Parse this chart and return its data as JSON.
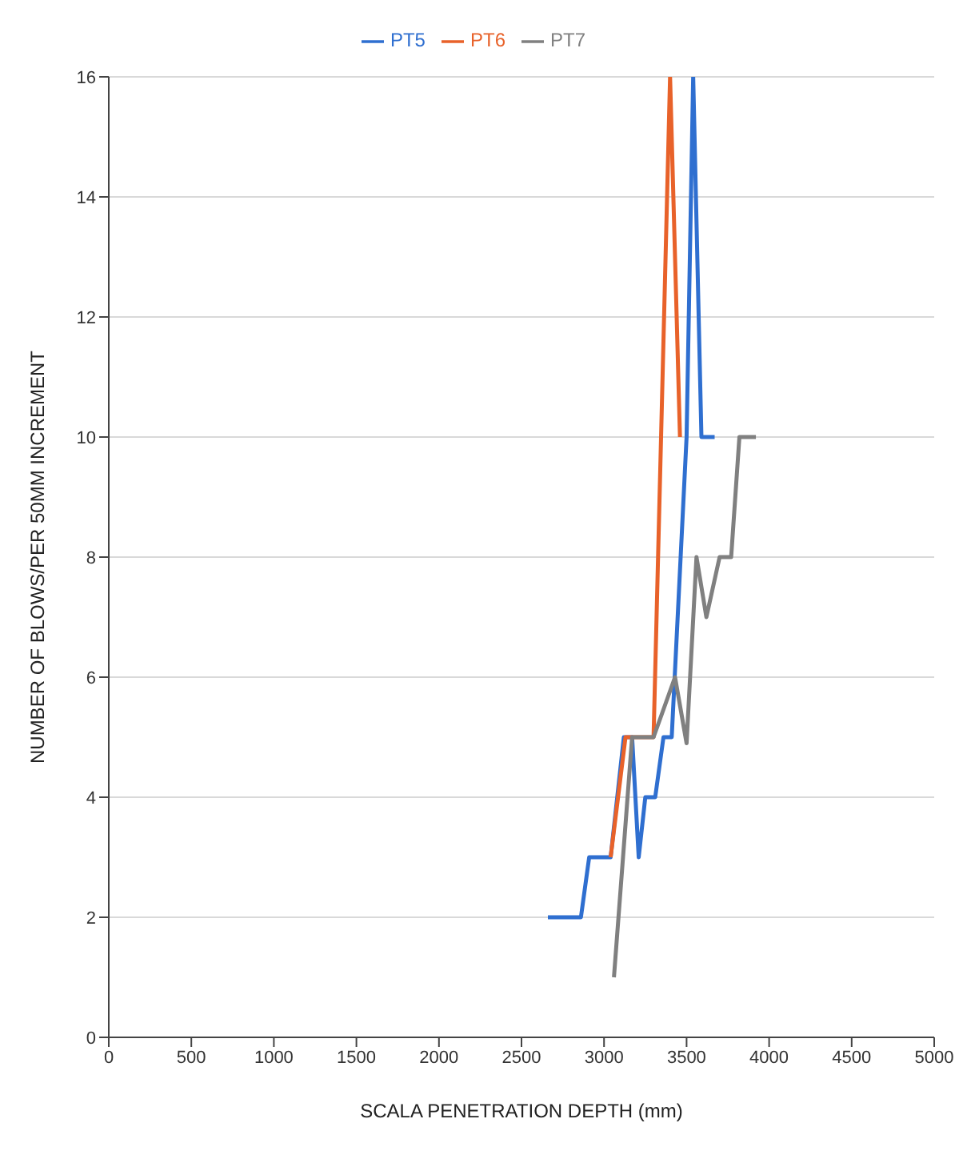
{
  "chart_data": {
    "type": "line",
    "xlabel": "SCALA PENETRATION DEPTH (mm)",
    "ylabel": "NUMBER OF BLOWS/PER 50MM INCREMENT",
    "xlim": [
      0,
      5000
    ],
    "ylim": [
      0,
      16
    ],
    "xticks": [
      0,
      500,
      1000,
      1500,
      2000,
      2500,
      3000,
      3500,
      4000,
      4500,
      5000
    ],
    "yticks": [
      0,
      2,
      4,
      6,
      8,
      10,
      12,
      14,
      16
    ],
    "grid": "y",
    "legend": "top",
    "marker": "none",
    "line_style": "solid",
    "series": [
      {
        "name": "PT5",
        "color": "#2f6fd0",
        "x": [
          2660,
          2860,
          2910,
          3040,
          3120,
          3170,
          3210,
          3250,
          3310,
          3360,
          3410,
          3500,
          3540,
          3590,
          3670
        ],
        "values": [
          2,
          2,
          3,
          3,
          5,
          5,
          3,
          4,
          4,
          5,
          5,
          10,
          16,
          10,
          10
        ]
      },
      {
        "name": "PT6",
        "color": "#e8622a",
        "x": [
          3040,
          3130,
          3300,
          3400,
          3460
        ],
        "values": [
          3,
          5,
          5,
          16,
          10
        ]
      },
      {
        "name": "PT7",
        "color": "#808080",
        "x": [
          3060,
          3170,
          3300,
          3430,
          3500,
          3560,
          3620,
          3700,
          3770,
          3820,
          3920
        ],
        "values": [
          1,
          5,
          5,
          6,
          4.9,
          8,
          7,
          8,
          8,
          10,
          10
        ]
      }
    ]
  }
}
